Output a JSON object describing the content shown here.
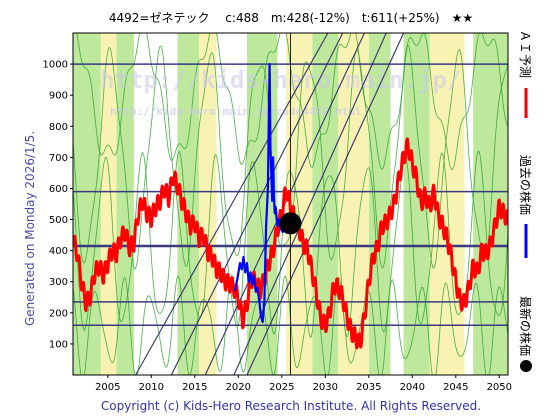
{
  "chart_data": {
    "type": "line",
    "title": "4492=ゼネテック　 c:488　m:428(-12%)　t:611(+25%)　★★",
    "ticker": "4492=ゼネテック",
    "current": "c:488",
    "mid": "m:428(-12%)",
    "target": "t:611(+25%)",
    "stars": "★★",
    "xlim": [
      2001,
      2051
    ],
    "ylim": [
      0,
      1100
    ],
    "xticks": [
      2005,
      2010,
      2015,
      2020,
      2025,
      2030,
      2035,
      2040,
      2045,
      2050
    ],
    "yticks": [
      100,
      200,
      300,
      400,
      500,
      600,
      700,
      800,
      900,
      1000
    ],
    "hlines": [
      1000,
      590,
      415,
      235,
      160
    ],
    "vline_x": 2026.0,
    "current_point": {
      "x": 2026.0,
      "y": 488
    },
    "legend": [
      "ＡＩ予測",
      "過去の株価",
      "最新の株価"
    ],
    "side_colors": {
      "forecast": "#ff0000",
      "past": "#0000ff",
      "latest": "#000000"
    },
    "generated": "Generated on Monday 2026/1/5.",
    "copyright": "Copyright (c) Kids-Hero Research Institute. All Rights Reserved.",
    "watermark": "http://kids-hero.main.jp/",
    "watermark_small": "http://kids-hero.main.jp/code4492.html",
    "forecast": {
      "x": [
        2001.0,
        2001.5,
        2002.0,
        2002.5,
        2003.0,
        2003.5,
        2004.0,
        2004.5,
        2005.0,
        2005.5,
        2006.0,
        2006.5,
        2007.0,
        2007.5,
        2008.0,
        2008.5,
        2009.0,
        2009.5,
        2010.0,
        2010.5,
        2011.0,
        2011.5,
        2012.0,
        2012.5,
        2013.0,
        2013.5,
        2014.0,
        2014.5,
        2015.0,
        2015.5,
        2016.0,
        2016.5,
        2017.0,
        2017.5,
        2018.0,
        2018.5,
        2019.0,
        2019.5,
        2020.0,
        2020.5,
        2021.0,
        2021.5,
        2022.0,
        2022.5,
        2023.0,
        2023.5,
        2024.0,
        2024.5,
        2025.0,
        2025.5,
        2026.0,
        2026.5,
        2027.0,
        2027.5,
        2028.0,
        2028.5,
        2029.0,
        2029.5,
        2030.0,
        2030.5,
        2031.0,
        2031.5,
        2032.0,
        2032.5,
        2033.0,
        2033.5,
        2034.0,
        2034.5,
        2035.0,
        2035.5,
        2036.0,
        2036.5,
        2037.0,
        2037.5,
        2038.0,
        2038.5,
        2039.0,
        2039.5,
        2040.0,
        2040.5,
        2041.0,
        2041.5,
        2042.0,
        2042.5,
        2043.0,
        2043.5,
        2044.0,
        2044.5,
        2045.0,
        2045.5,
        2046.0,
        2046.5,
        2047.0,
        2047.5,
        2048.0,
        2048.5,
        2049.0,
        2049.5,
        2050.0,
        2050.5,
        2051.0
      ],
      "y": [
        435,
        390,
        295,
        230,
        255,
        330,
        350,
        320,
        360,
        400,
        390,
        440,
        460,
        410,
        425,
        520,
        560,
        520,
        505,
        540,
        560,
        600,
        570,
        640,
        610,
        560,
        520,
        480,
        490,
        440,
        450,
        395,
        380,
        340,
        330,
        300,
        295,
        280,
        250,
        175,
        230,
        310,
        300,
        270,
        310,
        360,
        400,
        470,
        520,
        600,
        540,
        500,
        470,
        420,
        400,
        330,
        260,
        180,
        160,
        200,
        290,
        280,
        250,
        185,
        140,
        120,
        100,
        190,
        300,
        380,
        410,
        480,
        490,
        520,
        560,
        640,
        700,
        740,
        680,
        630,
        550,
        580,
        540,
        590,
        510,
        480,
        440,
        380,
        300,
        240,
        230,
        280,
        350,
        330,
        400,
        390,
        420,
        480,
        540,
        520,
        500
      ]
    },
    "past": {
      "x": [
        2019.6,
        2019.9,
        2020.2,
        2020.4,
        2020.6,
        2020.8,
        2021.0,
        2021.2,
        2021.4,
        2021.6,
        2021.8,
        2022.0,
        2022.2,
        2022.4,
        2022.6,
        2022.8,
        2023.0,
        2023.2,
        2023.4,
        2023.5,
        2023.6,
        2023.7,
        2023.8,
        2023.9,
        2024.0,
        2024.1,
        2024.2,
        2024.3,
        2024.5,
        2024.7,
        2024.9,
        2025.1,
        2025.3,
        2025.5,
        2025.7,
        2025.9,
        2026.0
      ],
      "y": [
        270,
        310,
        360,
        340,
        380,
        330,
        360,
        300,
        330,
        290,
        320,
        270,
        280,
        240,
        190,
        170,
        240,
        480,
        600,
        830,
        1000,
        720,
        640,
        560,
        700,
        570,
        520,
        540,
        480,
        500,
        470,
        460,
        490,
        470,
        500,
        480,
        488
      ]
    },
    "bands": {
      "green": [
        [
          2001,
          2004.2
        ],
        [
          2006,
          2008
        ],
        [
          2013,
          2015.5
        ],
        [
          2021,
          2024.5
        ],
        [
          2028.5,
          2031.5
        ],
        [
          2035,
          2037.5
        ],
        [
          2039,
          2042
        ],
        [
          2047,
          2051
        ]
      ],
      "yellow": [
        [
          2004.2,
          2006
        ],
        [
          2015.5,
          2017.5
        ],
        [
          2025.5,
          2028.5
        ],
        [
          2031.5,
          2035
        ],
        [
          2042,
          2046
        ]
      ]
    },
    "diagonals": [
      {
        "x0": 2008.2,
        "y0": 0,
        "x1": 2030.3,
        "y1": 1100
      },
      {
        "x0": 2012.3,
        "y0": 0,
        "x1": 2032.0,
        "y1": 1100
      },
      {
        "x0": 2016.2,
        "y0": 0,
        "x1": 2034.5,
        "y1": 1100
      },
      {
        "x0": 2019.5,
        "y0": 0,
        "x1": 2037.0,
        "y1": 1100
      },
      {
        "x0": 2021.0,
        "y0": 0,
        "x1": 2039.0,
        "y1": 1100
      }
    ]
  }
}
